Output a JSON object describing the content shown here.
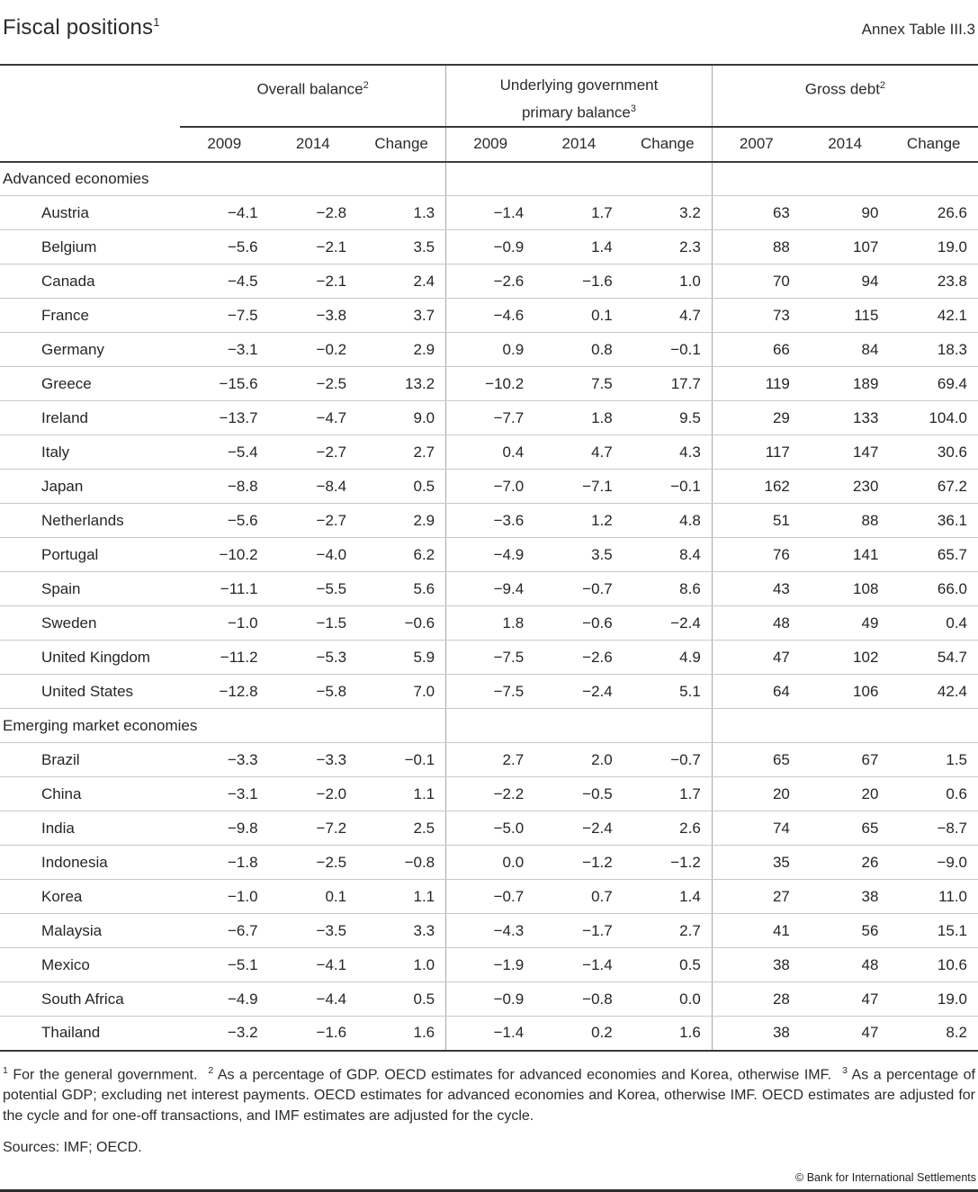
{
  "header": {
    "title": "Fiscal positions",
    "title_sup": "1",
    "annex": "Annex Table III.3"
  },
  "table": {
    "groups": [
      {
        "label": "Overall balance",
        "sup": "2"
      },
      {
        "line1": "Underlying government",
        "line2": "primary balance",
        "sup": "3"
      },
      {
        "label": "Gross debt",
        "sup": "2"
      }
    ],
    "col_headers": [
      "2009",
      "2014",
      "Change",
      "2009",
      "2014",
      "Change",
      "2007",
      "2014",
      "Change"
    ],
    "sections": [
      {
        "label": "Advanced economies",
        "rows": [
          {
            "country": "Austria",
            "values": [
              "−4.1",
              "−2.8",
              "1.3",
              "−1.4",
              "1.7",
              "3.2",
              "63",
              "90",
              "26.6"
            ]
          },
          {
            "country": "Belgium",
            "values": [
              "−5.6",
              "−2.1",
              "3.5",
              "−0.9",
              "1.4",
              "2.3",
              "88",
              "107",
              "19.0"
            ]
          },
          {
            "country": "Canada",
            "values": [
              "−4.5",
              "−2.1",
              "2.4",
              "−2.6",
              "−1.6",
              "1.0",
              "70",
              "94",
              "23.8"
            ]
          },
          {
            "country": "France",
            "values": [
              "−7.5",
              "−3.8",
              "3.7",
              "−4.6",
              "0.1",
              "4.7",
              "73",
              "115",
              "42.1"
            ]
          },
          {
            "country": "Germany",
            "values": [
              "−3.1",
              "−0.2",
              "2.9",
              "0.9",
              "0.8",
              "−0.1",
              "66",
              "84",
              "18.3"
            ]
          },
          {
            "country": "Greece",
            "values": [
              "−15.6",
              "−2.5",
              "13.2",
              "−10.2",
              "7.5",
              "17.7",
              "119",
              "189",
              "69.4"
            ]
          },
          {
            "country": "Ireland",
            "values": [
              "−13.7",
              "−4.7",
              "9.0",
              "−7.7",
              "1.8",
              "9.5",
              "29",
              "133",
              "104.0"
            ]
          },
          {
            "country": "Italy",
            "values": [
              "−5.4",
              "−2.7",
              "2.7",
              "0.4",
              "4.7",
              "4.3",
              "117",
              "147",
              "30.6"
            ]
          },
          {
            "country": "Japan",
            "values": [
              "−8.8",
              "−8.4",
              "0.5",
              "−7.0",
              "−7.1",
              "−0.1",
              "162",
              "230",
              "67.2"
            ]
          },
          {
            "country": "Netherlands",
            "values": [
              "−5.6",
              "−2.7",
              "2.9",
              "−3.6",
              "1.2",
              "4.8",
              "51",
              "88",
              "36.1"
            ]
          },
          {
            "country": "Portugal",
            "values": [
              "−10.2",
              "−4.0",
              "6.2",
              "−4.9",
              "3.5",
              "8.4",
              "76",
              "141",
              "65.7"
            ]
          },
          {
            "country": "Spain",
            "values": [
              "−11.1",
              "−5.5",
              "5.6",
              "−9.4",
              "−0.7",
              "8.6",
              "43",
              "108",
              "66.0"
            ]
          },
          {
            "country": "Sweden",
            "values": [
              "−1.0",
              "−1.5",
              "−0.6",
              "1.8",
              "−0.6",
              "−2.4",
              "48",
              "49",
              "0.4"
            ]
          },
          {
            "country": "United Kingdom",
            "values": [
              "−11.2",
              "−5.3",
              "5.9",
              "−7.5",
              "−2.6",
              "4.9",
              "47",
              "102",
              "54.7"
            ]
          },
          {
            "country": "United States",
            "values": [
              "−12.8",
              "−5.8",
              "7.0",
              "−7.5",
              "−2.4",
              "5.1",
              "64",
              "106",
              "42.4"
            ]
          }
        ]
      },
      {
        "label": "Emerging market economies",
        "rows": [
          {
            "country": "Brazil",
            "values": [
              "−3.3",
              "−3.3",
              "−0.1",
              "2.7",
              "2.0",
              "−0.7",
              "65",
              "67",
              "1.5"
            ]
          },
          {
            "country": "China",
            "values": [
              "−3.1",
              "−2.0",
              "1.1",
              "−2.2",
              "−0.5",
              "1.7",
              "20",
              "20",
              "0.6"
            ]
          },
          {
            "country": "India",
            "values": [
              "−9.8",
              "−7.2",
              "2.5",
              "−5.0",
              "−2.4",
              "2.6",
              "74",
              "65",
              "−8.7"
            ]
          },
          {
            "country": "Indonesia",
            "values": [
              "−1.8",
              "−2.5",
              "−0.8",
              "0.0",
              "−1.2",
              "−1.2",
              "35",
              "26",
              "−9.0"
            ]
          },
          {
            "country": "Korea",
            "values": [
              "−1.0",
              "0.1",
              "1.1",
              "−0.7",
              "0.7",
              "1.4",
              "27",
              "38",
              "11.0"
            ]
          },
          {
            "country": "Malaysia",
            "values": [
              "−6.7",
              "−3.5",
              "3.3",
              "−4.3",
              "−1.7",
              "2.7",
              "41",
              "56",
              "15.1"
            ]
          },
          {
            "country": "Mexico",
            "values": [
              "−5.1",
              "−4.1",
              "1.0",
              "−1.9",
              "−1.4",
              "0.5",
              "38",
              "48",
              "10.6"
            ]
          },
          {
            "country": "South Africa",
            "values": [
              "−4.9",
              "−4.4",
              "0.5",
              "−0.9",
              "−0.8",
              "0.0",
              "28",
              "47",
              "19.0"
            ]
          },
          {
            "country": "Thailand",
            "values": [
              "−3.2",
              "−1.6",
              "1.6",
              "−1.4",
              "0.2",
              "1.6",
              "38",
              "47",
              "8.2"
            ]
          }
        ]
      }
    ]
  },
  "footnotes": [
    {
      "sup": "1",
      "text": "For the general government."
    },
    {
      "sup": "2",
      "text": "As a percentage of GDP. OECD estimates for advanced economies and Korea, otherwise IMF."
    },
    {
      "sup": "3",
      "text": "As a percentage of potential GDP; excluding net interest payments. OECD estimates for advanced economies and Korea, otherwise IMF. OECD estimates are adjusted for the cycle and for one-off transactions, and IMF estimates are adjusted for the cycle."
    }
  ],
  "sources": "Sources: IMF; OECD.",
  "copyright": "© Bank for International Settlements"
}
